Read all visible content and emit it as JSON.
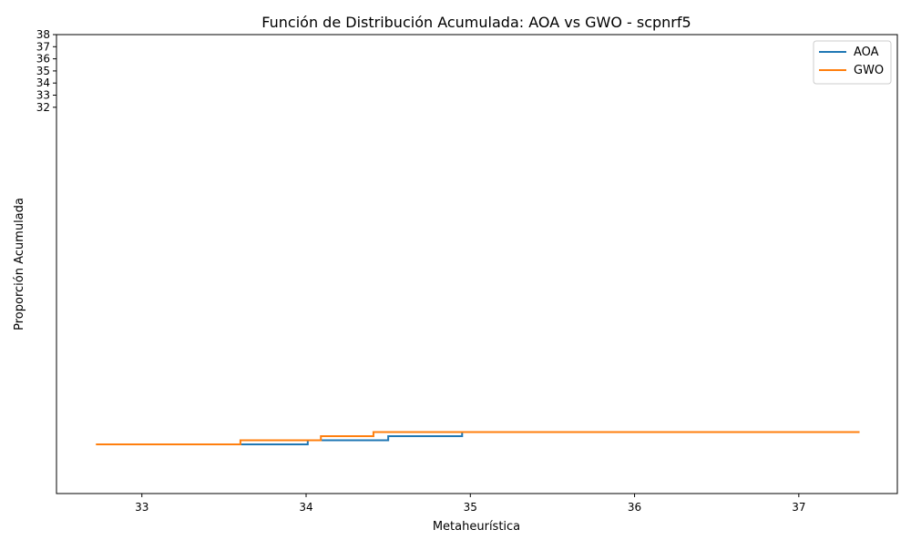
{
  "chart_data": {
    "type": "line",
    "title": "Función de Distribución Acumulada: AOA vs GWO - scpnrf5",
    "xlabel": "Metaheurística",
    "ylabel": "Proporción Acumulada",
    "xlim": [
      32.48,
      37.6
    ],
    "x_ticks": [
      33,
      34,
      35,
      36,
      37
    ],
    "y_tick_labels": [
      "32",
      "33",
      "34",
      "35",
      "36",
      "37",
      "38"
    ],
    "y_axis_note": "tick labels 32–38 are crowded in the top portion of the axis; CDF proportions are plotted near the bottom",
    "ylim": [
      -0.12,
      1.0
    ],
    "legend": {
      "position": "top-right",
      "entries": [
        "AOA",
        "GWO"
      ]
    },
    "grid": false,
    "series": [
      {
        "name": "AOA",
        "color": "#1f77b4",
        "x": [
          33.29,
          33.47,
          33.6,
          33.86,
          34.01,
          34.24,
          34.32,
          34.5,
          34.78,
          34.88,
          34.95,
          35.2,
          35.37,
          35.45,
          35.8
        ],
        "y": [
          0.0,
          0.0,
          0.0,
          0.0,
          0.01,
          0.01,
          0.01,
          0.02,
          0.02,
          0.02,
          0.03,
          0.03,
          0.03,
          0.03,
          0.03
        ]
      },
      {
        "name": "GWO",
        "color": "#ff7f0e",
        "x": [
          32.72,
          32.86,
          33.13,
          33.47,
          33.6,
          33.86,
          33.94,
          34.02,
          34.09,
          34.27,
          34.41,
          34.49,
          34.53,
          35.03,
          35.22,
          35.8,
          37.37
        ],
        "y": [
          0.0,
          0.0,
          0.0,
          0.0,
          0.01,
          0.01,
          0.01,
          0.01,
          0.02,
          0.02,
          0.03,
          0.03,
          0.03,
          0.03,
          0.03,
          0.03,
          0.03
        ]
      }
    ]
  }
}
